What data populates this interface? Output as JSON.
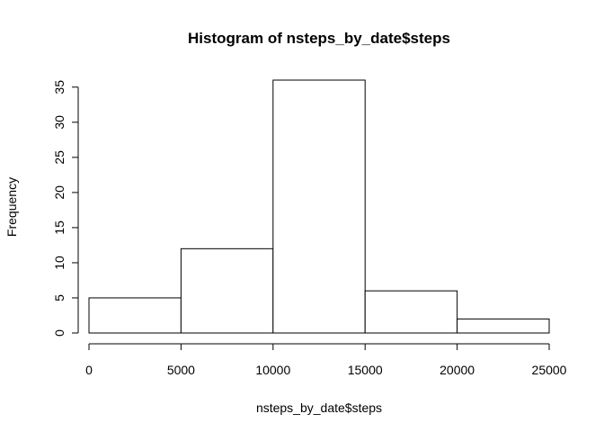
{
  "chart_data": {
    "type": "bar",
    "subtype": "histogram",
    "title": "Histogram of nsteps_by_date$steps",
    "xlabel": "nsteps_by_date$steps",
    "ylabel": "Frequency",
    "bins": [
      {
        "start": 0,
        "end": 5000,
        "count": 5
      },
      {
        "start": 5000,
        "end": 10000,
        "count": 12
      },
      {
        "start": 10000,
        "end": 15000,
        "count": 36
      },
      {
        "start": 15000,
        "end": 20000,
        "count": 6
      },
      {
        "start": 20000,
        "end": 25000,
        "count": 2
      }
    ],
    "xlim": [
      0,
      25000
    ],
    "ylim": [
      0,
      36
    ],
    "x_ticks": [
      0,
      5000,
      10000,
      15000,
      20000,
      25000
    ],
    "x_tick_labels": [
      "0",
      "5000",
      "10000",
      "15000",
      "20000",
      "25000"
    ],
    "y_ticks": [
      0,
      5,
      10,
      15,
      20,
      25,
      30,
      35
    ],
    "y_tick_labels": [
      "0",
      "5",
      "10",
      "15",
      "20",
      "25",
      "30",
      "35"
    ],
    "grid": false,
    "bar_fill": "#ffffff",
    "bar_stroke": "#000000"
  }
}
